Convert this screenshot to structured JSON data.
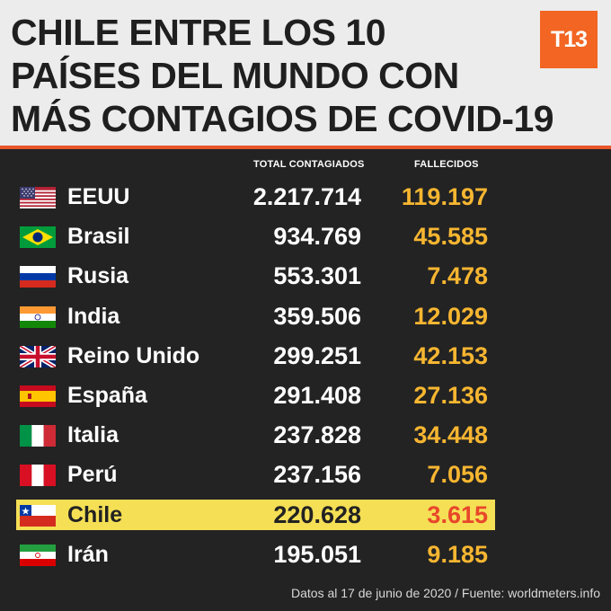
{
  "header": {
    "title_lines": [
      "CHILE ENTRE LOS 10",
      "PAÍSES DEL MUNDO CON",
      "MÁS CONTAGIOS DE COVID-19"
    ],
    "logo": "T13"
  },
  "columns": {
    "total": "TOTAL CONTAGIADOS",
    "deaths": "FALLECIDOS"
  },
  "rows": [
    {
      "flag": "us-flag-icon",
      "country": "EEUU",
      "total": "2.217.714",
      "deaths": "119.197"
    },
    {
      "flag": "brazil-flag-icon",
      "country": "Brasil",
      "total": "934.769",
      "deaths": "45.585"
    },
    {
      "flag": "russia-flag-icon",
      "country": "Rusia",
      "total": "553.301",
      "deaths": "7.478"
    },
    {
      "flag": "india-flag-icon",
      "country": "India",
      "total": "359.506",
      "deaths": "12.029"
    },
    {
      "flag": "uk-flag-icon",
      "country": "Reino Unido",
      "total": "299.251",
      "deaths": "42.153"
    },
    {
      "flag": "spain-flag-icon",
      "country": "España",
      "total": "291.408",
      "deaths": "27.136"
    },
    {
      "flag": "italy-flag-icon",
      "country": "Italia",
      "total": "237.828",
      "deaths": "34.448"
    },
    {
      "flag": "peru-flag-icon",
      "country": "Perú",
      "total": "237.156",
      "deaths": "7.056"
    },
    {
      "flag": "chile-flag-icon",
      "country": "Chile",
      "total": "220.628",
      "deaths": "3.615",
      "highlight": true
    },
    {
      "flag": "iran-flag-icon",
      "country": "Irán",
      "total": "195.051",
      "deaths": "9.185"
    }
  ],
  "footer": "Datos al 17 de junio de 2020 / Fuente: worldmeters.info",
  "colors": {
    "accent": "#f26522",
    "deaths": "#f7b631",
    "highlight": "#f4df55",
    "chile_deaths": "#e8472a"
  }
}
